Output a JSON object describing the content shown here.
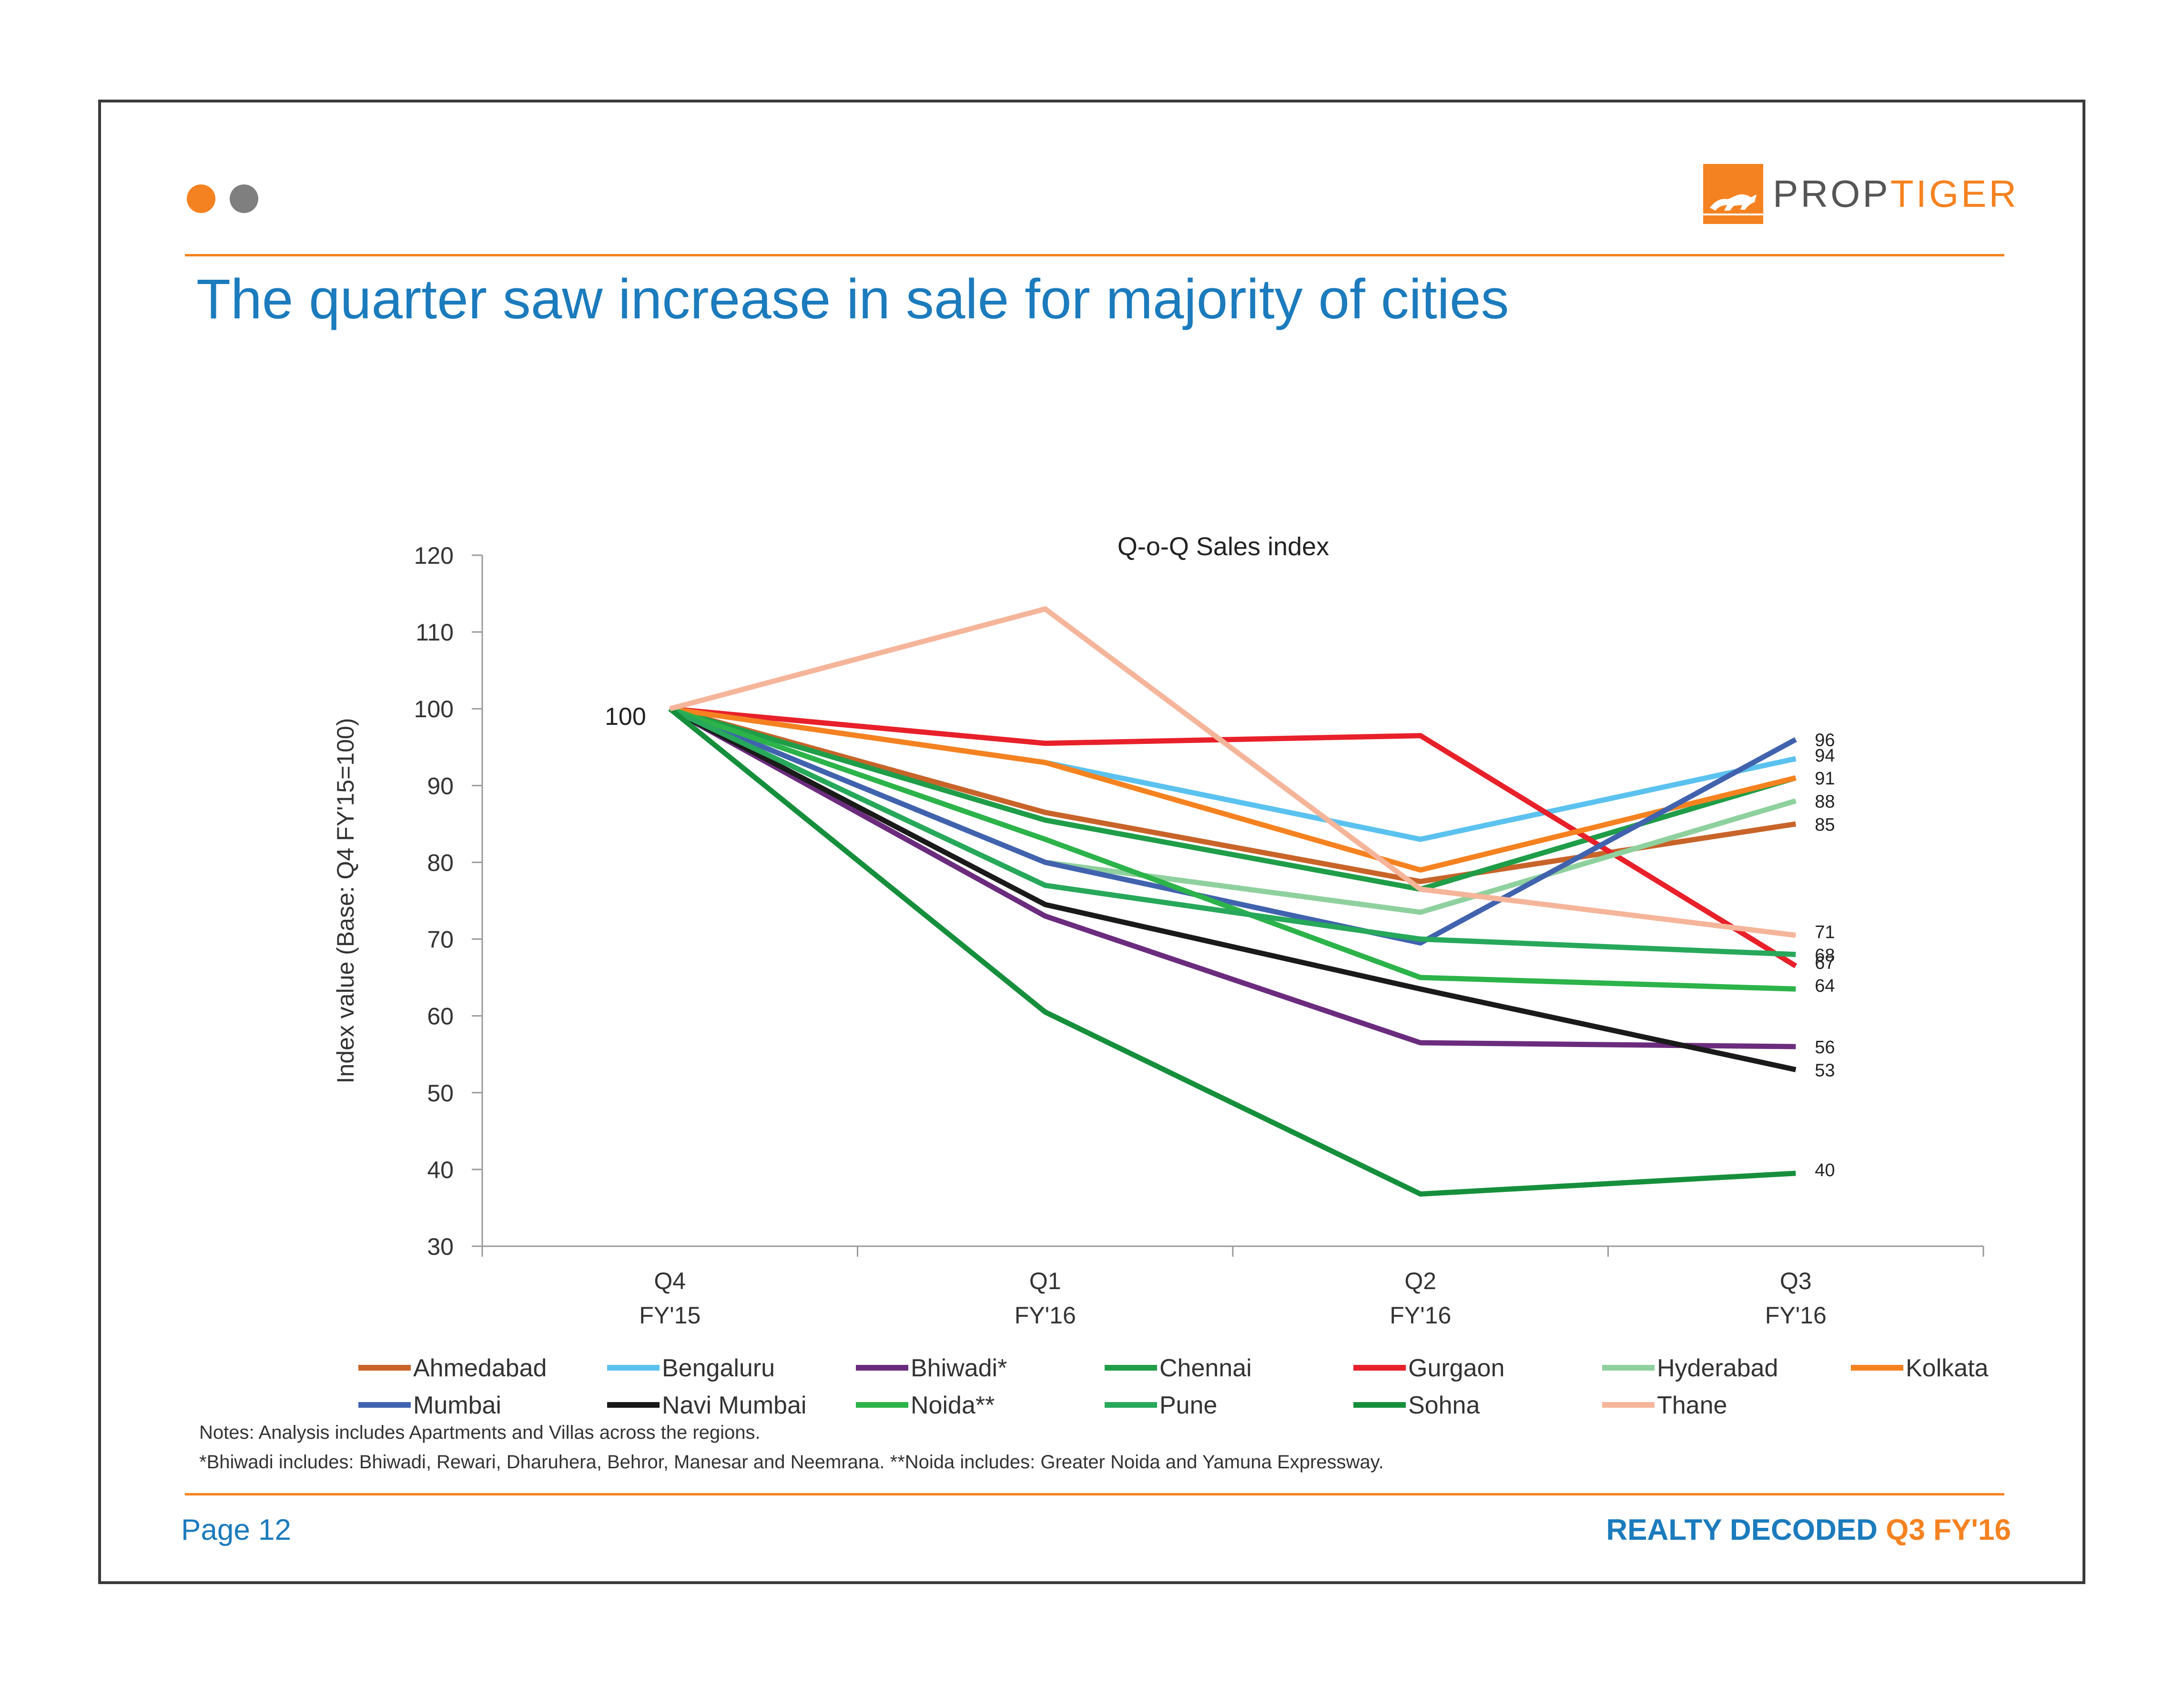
{
  "colors": {
    "accent_orange": "#f58220",
    "dot_gray": "#7f7f7f",
    "title_blue": "#1b7bbd",
    "text_dark": "#333333"
  },
  "logo": {
    "text_prefix": "PROP",
    "text_suffix": "TIGER"
  },
  "title": "The quarter saw increase in sale for majority of cities",
  "chart_data": {
    "type": "line",
    "title": "Q-o-Q Sales index",
    "ylabel": "Index value (Base: Q4 FY'15=100)",
    "xlabel": "",
    "ylim": [
      30,
      120
    ],
    "y_ticks": [
      30,
      40,
      50,
      60,
      70,
      80,
      90,
      100,
      110,
      120
    ],
    "categories": [
      {
        "line1": "Q4",
        "line2": "FY'15"
      },
      {
        "line1": "Q1",
        "line2": "FY'16"
      },
      {
        "line1": "Q2",
        "line2": "FY'16"
      },
      {
        "line1": "Q3",
        "line2": "FY'16"
      }
    ],
    "start_label": "100",
    "grid": false,
    "legend_position": "bottom",
    "series": [
      {
        "name": "Ahmedabad",
        "color": "#c8642a",
        "values": [
          100,
          86.5,
          77.5,
          85
        ]
      },
      {
        "name": "Bengaluru",
        "color": "#5bc2ef",
        "values": [
          100,
          93,
          83,
          93.5
        ]
      },
      {
        "name": "Bhiwadi*",
        "color": "#6b2c7e",
        "values": [
          100,
          73,
          56.5,
          56
        ]
      },
      {
        "name": "Chennai",
        "color": "#1f9d48",
        "values": [
          100,
          85.5,
          76.5,
          91
        ]
      },
      {
        "name": "Gurgaon",
        "color": "#e8202a",
        "values": [
          100,
          95.5,
          96.5,
          66.5
        ]
      },
      {
        "name": "Hyderabad",
        "color": "#8fd19e",
        "values": [
          100,
          80,
          73.5,
          88
        ]
      },
      {
        "name": "Kolkata",
        "color": "#f58220",
        "values": [
          100,
          93,
          79,
          91
        ]
      },
      {
        "name": "Mumbai",
        "color": "#4163ae",
        "values": [
          100,
          80,
          69.5,
          96
        ]
      },
      {
        "name": "Navi Mumbai",
        "color": "#1a1a1a",
        "values": [
          100,
          74.5,
          63.5,
          53
        ]
      },
      {
        "name": "Noida**",
        "color": "#2cb34a",
        "values": [
          100,
          83,
          65,
          63.5
        ]
      },
      {
        "name": "Pune",
        "color": "#27a85b",
        "values": [
          100,
          77,
          70,
          68
        ]
      },
      {
        "name": "Sohna",
        "color": "#168f3c",
        "values": [
          100,
          60.5,
          36.8,
          39.5
        ]
      },
      {
        "name": "Thane",
        "color": "#f5b59a",
        "values": [
          100,
          113,
          76.5,
          70.5
        ]
      }
    ],
    "end_labels": [
      "96",
      "94",
      "91",
      "88",
      "85",
      "71",
      "68",
      "67",
      "64",
      "56",
      "53",
      "40"
    ]
  },
  "notes": {
    "line1": "Notes: Analysis includes Apartments and Villas across the regions.",
    "line2": "*Bhiwadi includes: Bhiwadi, Rewari, Dharuhera, Behror, Manesar and Neemrana. **Noida includes: Greater Noida and Yamuna Expressway."
  },
  "footer": {
    "page": "Page 12",
    "brand_main": "REALTY DECODED",
    "brand_accent": "Q3 FY'16"
  }
}
